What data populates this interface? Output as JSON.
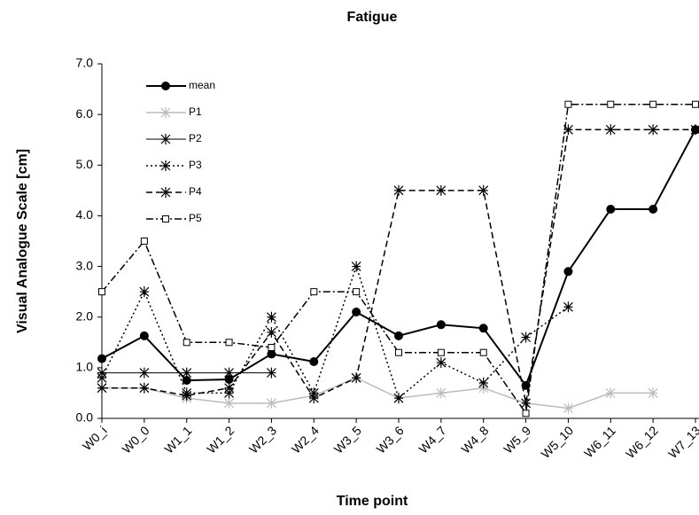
{
  "chart_data": {
    "type": "line",
    "title": "Fatigue",
    "x_label": "Time point",
    "y_label": "Visual Analogue Scale [cm]",
    "categories": [
      "W0_i",
      "W0_0",
      "W1_1",
      "W1_2",
      "W2_3",
      "W2_4",
      "W3_5",
      "W3_6",
      "W4_7",
      "W4_8",
      "W5_9",
      "W5_10",
      "W6_11",
      "W6_12",
      "W7_13"
    ],
    "ylim": [
      0,
      7
    ],
    "yticks": [
      {
        "value": 0,
        "label": "0.0"
      },
      {
        "value": 1,
        "label": "1.0"
      },
      {
        "value": 2,
        "label": "2.0"
      },
      {
        "value": 3,
        "label": "3.0"
      },
      {
        "value": 4,
        "label": "4.0"
      },
      {
        "value": 5,
        "label": "5.0"
      },
      {
        "value": 6,
        "label": "6.0"
      },
      {
        "value": 7,
        "label": "7.0"
      }
    ],
    "grid": false,
    "legend": "upper left",
    "series": [
      {
        "name": "mean",
        "color": "#000000",
        "line_style": "solid",
        "line_width": 2,
        "marker": "circle",
        "values": [
          1.18,
          1.63,
          0.75,
          0.77,
          1.27,
          1.12,
          2.1,
          1.63,
          1.85,
          1.78,
          0.65,
          2.9,
          4.13,
          4.13,
          5.7
        ]
      },
      {
        "name": "P1",
        "color": "#bbbbbb",
        "line_style": "solid",
        "line_width": 1.5,
        "marker": "star",
        "values": [
          0.6,
          0.6,
          0.4,
          0.3,
          0.3,
          0.45,
          0.8,
          0.4,
          0.5,
          0.6,
          0.3,
          0.2,
          0.5,
          0.5,
          null
        ]
      },
      {
        "name": "P2",
        "color": "#000000",
        "line_style": "solid",
        "line_width": 1,
        "marker": "star",
        "values": [
          0.9,
          0.9,
          0.9,
          0.9,
          0.9,
          null,
          null,
          null,
          null,
          null,
          null,
          null,
          null,
          null,
          null
        ]
      },
      {
        "name": "P3",
        "color": "#000000",
        "line_style": "dotted",
        "line_width": 1.5,
        "marker": "star",
        "values": [
          0.8,
          2.5,
          0.5,
          0.5,
          2.0,
          0.5,
          3.0,
          0.4,
          1.1,
          0.7,
          1.6,
          2.2,
          null,
          null,
          null
        ]
      },
      {
        "name": "P4",
        "color": "#000000",
        "line_style": "dashed",
        "line_width": 1.5,
        "marker": "star",
        "values": [
          0.6,
          0.6,
          0.45,
          0.6,
          1.7,
          0.4,
          0.8,
          4.5,
          4.5,
          4.5,
          0.3,
          5.7,
          5.7,
          5.7,
          5.7
        ]
      },
      {
        "name": "P5",
        "color": "#000000",
        "line_style": "dashdot",
        "line_width": 1.5,
        "marker": "square",
        "values": [
          2.5,
          3.5,
          1.5,
          1.5,
          1.4,
          2.5,
          2.5,
          1.3,
          1.3,
          1.3,
          0.1,
          6.2,
          6.2,
          6.2,
          6.2
        ]
      }
    ]
  }
}
